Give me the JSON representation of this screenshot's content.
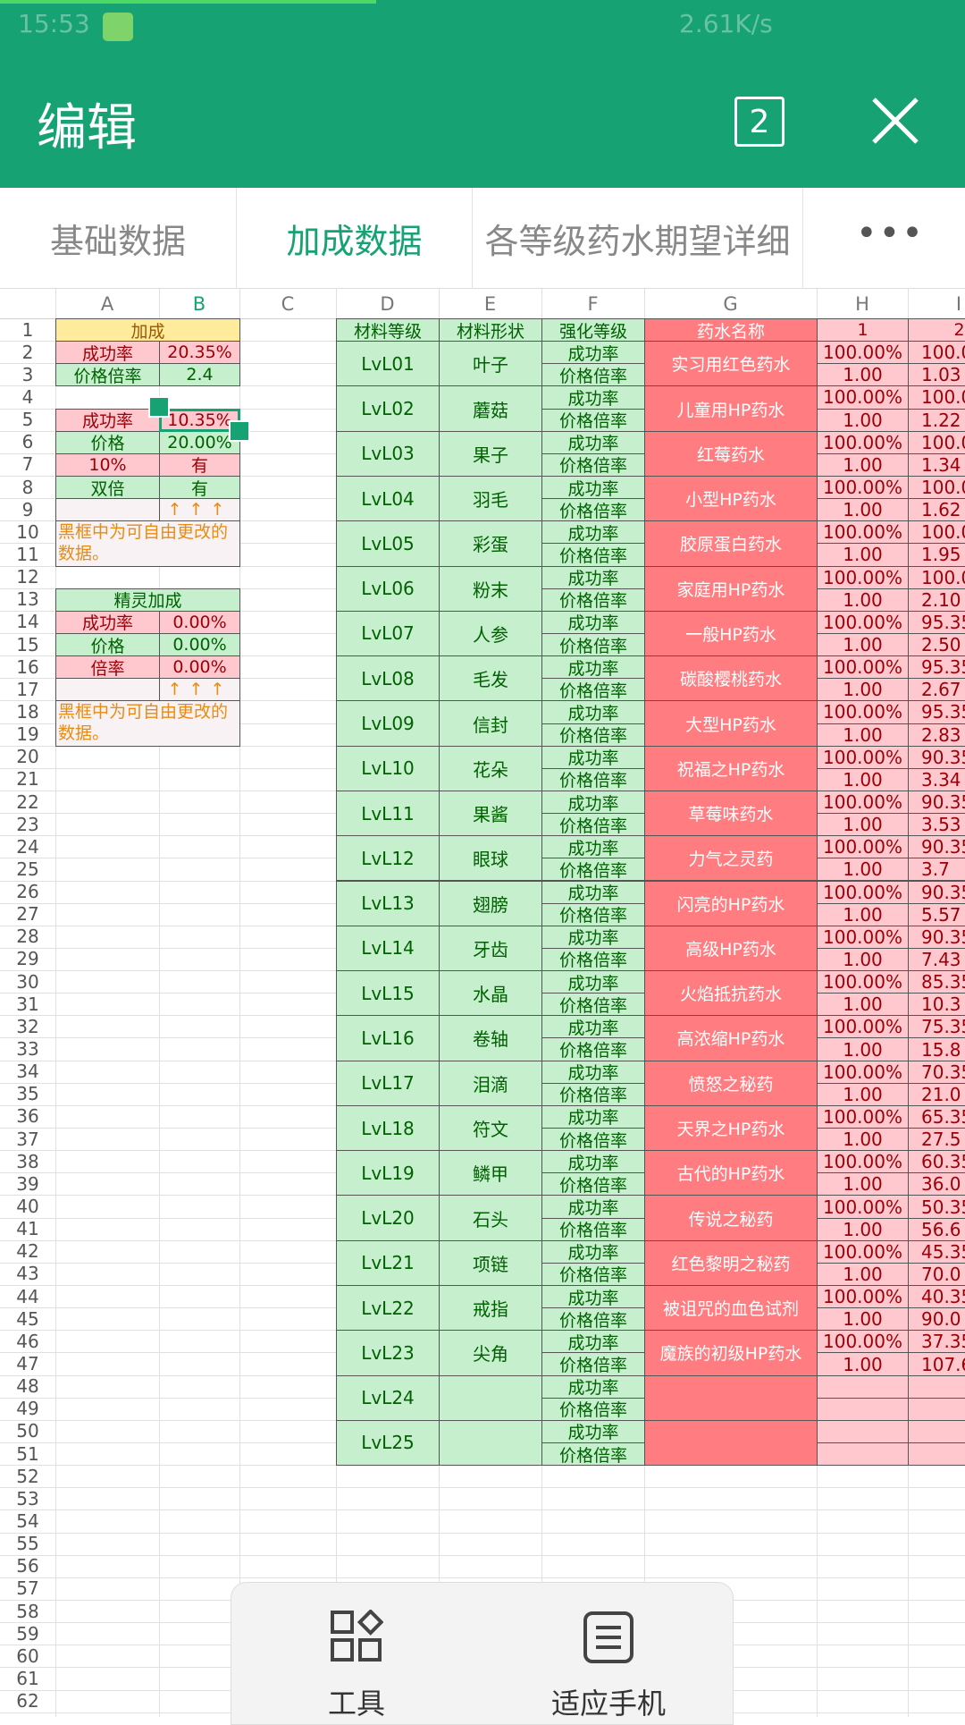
{
  "status_bar": {
    "time": "15:53",
    "network_speed": "2.61K/s"
  },
  "header": {
    "title": "编辑",
    "window_count": "2"
  },
  "tabs": [
    "基础数据",
    "加成数据",
    "各等级药水期望详细"
  ],
  "active_tab": 1,
  "sheet": {
    "columns": [
      "A",
      "B",
      "C",
      "D",
      "E",
      "F",
      "G",
      "H",
      "I"
    ],
    "row_numbers": [
      1,
      2,
      3,
      4,
      5,
      6,
      7,
      8,
      9,
      10,
      11,
      12,
      13,
      14,
      15,
      16,
      17,
      18,
      19,
      20,
      21,
      22,
      23,
      24,
      25,
      26,
      27,
      28,
      29,
      30,
      31,
      32,
      33,
      34,
      35,
      36,
      37,
      38,
      39,
      40,
      41,
      42,
      43,
      44,
      45,
      46,
      47,
      48,
      49,
      50,
      51,
      52,
      53,
      54,
      55,
      56,
      57,
      58,
      59,
      60,
      61,
      62
    ],
    "bonus_rows": [
      [
        "加成"
      ],
      [
        "成功率",
        "20.35%"
      ],
      [
        "价格倍率",
        "2.4"
      ],
      null,
      [
        "成功率",
        "10.35%"
      ],
      [
        "价格",
        "20.00%"
      ],
      [
        "10%",
        "有"
      ],
      [
        "双倍",
        "有"
      ],
      [
        null,
        "↑↑↑"
      ],
      [
        "黑框中为可自由更改的数据。"
      ],
      null,
      null,
      [
        "精灵加成"
      ],
      [
        "成功率",
        "0.00%"
      ],
      [
        "价格",
        "0.00%"
      ],
      [
        "倍率",
        "0.00%"
      ],
      [
        null,
        "↑↑↑"
      ],
      [
        "黑框中为可自由更改的数据。"
      ],
      null
    ],
    "table": {
      "header": [
        "材料等级",
        "材料形状",
        "强化等级",
        "药水名称",
        "1",
        "2"
      ],
      "enhance_labels": [
        "成功率",
        "价格倍率"
      ],
      "levels": [
        {
          "level": "LvL01",
          "material": "叶子",
          "potion": "实习用红色药水",
          "h": [
            "100.00%",
            "1.00"
          ],
          "i": [
            "100.0",
            "1.03"
          ]
        },
        {
          "level": "LvL02",
          "material": "蘑菇",
          "potion": "儿童用HP药水",
          "h": [
            "100.00%",
            "1.00"
          ],
          "i": [
            "100.0",
            "1.22"
          ]
        },
        {
          "level": "LvL03",
          "material": "果子",
          "potion": "红莓药水",
          "h": [
            "100.00%",
            "1.00"
          ],
          "i": [
            "100.0",
            "1.34"
          ]
        },
        {
          "level": "LvL04",
          "material": "羽毛",
          "potion": "小型HP药水",
          "h": [
            "100.00%",
            "1.00"
          ],
          "i": [
            "100.0",
            "1.62"
          ]
        },
        {
          "level": "LvL05",
          "material": "彩蛋",
          "potion": "胶原蛋白药水",
          "h": [
            "100.00%",
            "1.00"
          ],
          "i": [
            "100.0",
            "1.95"
          ]
        },
        {
          "level": "LvL06",
          "material": "粉末",
          "potion": "家庭用HP药水",
          "h": [
            "100.00%",
            "1.00"
          ],
          "i": [
            "100.0",
            "2.10"
          ]
        },
        {
          "level": "LvL07",
          "material": "人参",
          "potion": "一般HP药水",
          "h": [
            "100.00%",
            "1.00"
          ],
          "i": [
            "95.35",
            "2.50"
          ]
        },
        {
          "level": "LvL08",
          "material": "毛发",
          "potion": "碳酸樱桃药水",
          "h": [
            "100.00%",
            "1.00"
          ],
          "i": [
            "95.35",
            "2.67"
          ]
        },
        {
          "level": "LvL09",
          "material": "信封",
          "potion": "大型HP药水",
          "h": [
            "100.00%",
            "1.00"
          ],
          "i": [
            "95.35",
            "2.83"
          ]
        },
        {
          "level": "LvL10",
          "material": "花朵",
          "potion": "祝福之HP药水",
          "h": [
            "100.00%",
            "1.00"
          ],
          "i": [
            "90.35",
            "3.34"
          ]
        },
        {
          "level": "LvL11",
          "material": "果酱",
          "potion": "草莓味药水",
          "h": [
            "100.00%",
            "1.00"
          ],
          "i": [
            "90.35",
            "3.53"
          ]
        },
        {
          "level": "LvL12",
          "material": "眼球",
          "potion": "力气之灵药",
          "h": [
            "100.00%",
            "1.00"
          ],
          "i": [
            "90.35",
            "3.7"
          ]
        },
        {
          "level": "LvL13",
          "material": "翅膀",
          "potion": "闪亮的HP药水",
          "h": [
            "100.00%",
            "1.00"
          ],
          "i": [
            "90.35",
            "5.57"
          ]
        },
        {
          "level": "LvL14",
          "material": "牙齿",
          "potion": "高级HP药水",
          "h": [
            "100.00%",
            "1.00"
          ],
          "i": [
            "90.35",
            "7.43"
          ]
        },
        {
          "level": "LvL15",
          "material": "水晶",
          "potion": "火焰抵抗药水",
          "h": [
            "100.00%",
            "1.00"
          ],
          "i": [
            "85.35",
            "10.3"
          ]
        },
        {
          "level": "LvL16",
          "material": "卷轴",
          "potion": "高浓缩HP药水",
          "h": [
            "100.00%",
            "1.00"
          ],
          "i": [
            "75.35",
            "15.8"
          ]
        },
        {
          "level": "LvL17",
          "material": "泪滴",
          "potion": "愤怒之秘药",
          "h": [
            "100.00%",
            "1.00"
          ],
          "i": [
            "70.35",
            "21.0"
          ]
        },
        {
          "level": "LvL18",
          "material": "符文",
          "potion": "天界之HP药水",
          "h": [
            "100.00%",
            "1.00"
          ],
          "i": [
            "65.35",
            "27.5"
          ]
        },
        {
          "level": "LvL19",
          "material": "鳞甲",
          "potion": "古代的HP药水",
          "h": [
            "100.00%",
            "1.00"
          ],
          "i": [
            "60.35",
            "36.0"
          ]
        },
        {
          "level": "LvL20",
          "material": "石头",
          "potion": "传说之秘药",
          "h": [
            "100.00%",
            "1.00"
          ],
          "i": [
            "50.35",
            "56.6"
          ]
        },
        {
          "level": "LvL21",
          "material": "项链",
          "potion": "红色黎明之秘药",
          "h": [
            "100.00%",
            "1.00"
          ],
          "i": [
            "45.35",
            "70.0"
          ]
        },
        {
          "level": "LvL22",
          "material": "戒指",
          "potion": "被诅咒的血色试剂",
          "h": [
            "100.00%",
            "1.00"
          ],
          "i": [
            "40.35",
            "90.0"
          ]
        },
        {
          "level": "LvL23",
          "material": "尖角",
          "potion": "魔族的初级HP药水",
          "h": [
            "100.00%",
            "1.00"
          ],
          "i": [
            "37.35",
            "107.6"
          ]
        },
        {
          "level": "LvL24"
        },
        {
          "level": "LvL25"
        }
      ]
    }
  },
  "toolbar": [
    "工具",
    "适应手机"
  ]
}
